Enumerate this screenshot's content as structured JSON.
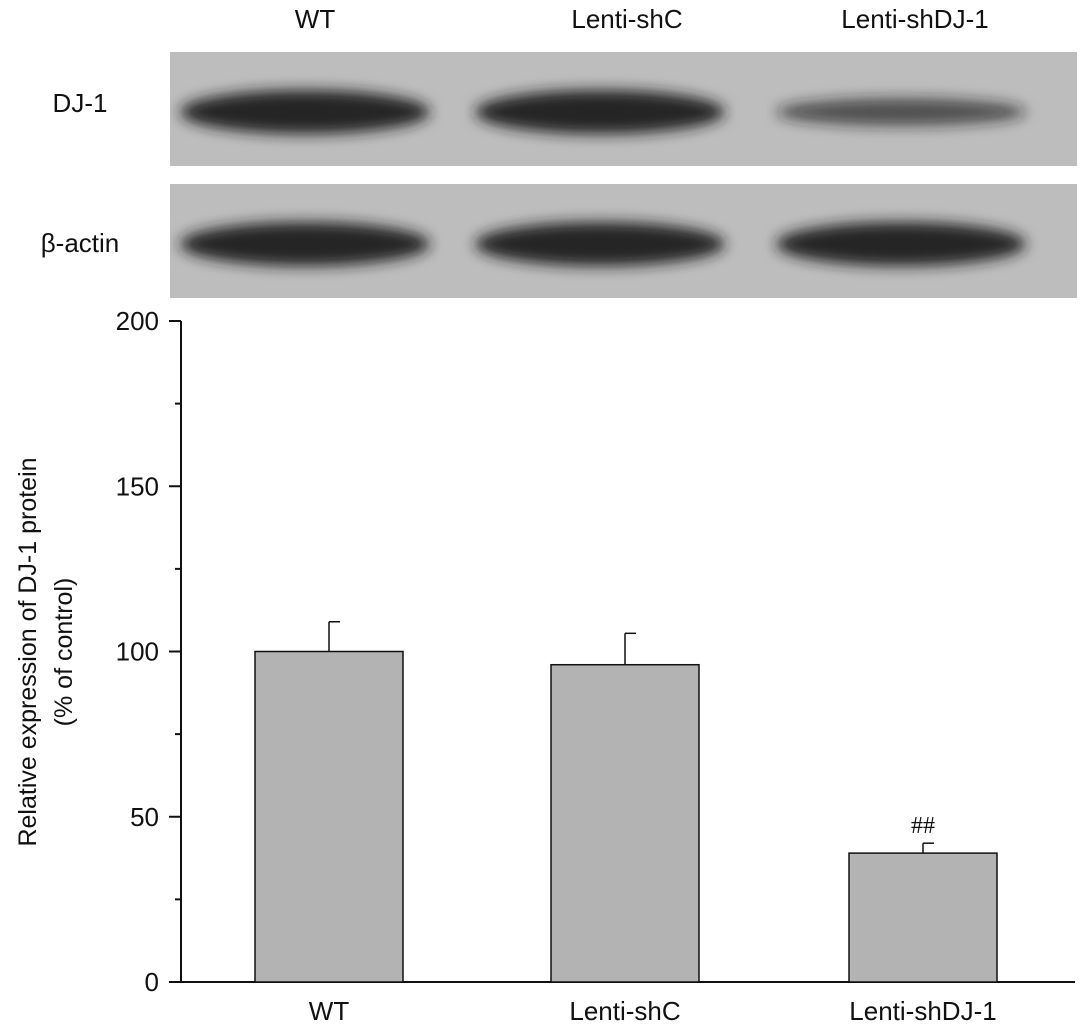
{
  "blot": {
    "lanes": [
      "WT",
      "Lenti-shC",
      "Lenti-shDJ-1"
    ],
    "rows": [
      {
        "label": "DJ-1",
        "band_intensity": [
          1.0,
          1.0,
          0.55
        ]
      },
      {
        "label": "β-actin",
        "band_intensity": [
          1.0,
          1.0,
          1.0
        ]
      }
    ],
    "colors": {
      "membrane": "#bdbdbd",
      "band": "#1a1a1a"
    }
  },
  "chart_data": {
    "type": "bar",
    "categories": [
      "WT",
      "Lenti-shC",
      "Lenti-shDJ-1"
    ],
    "values": [
      100,
      96,
      39
    ],
    "errors": [
      9,
      9.5,
      3
    ],
    "annotations": [
      "",
      "",
      "##"
    ],
    "ylabel_line1": "Relative expression of DJ-1 protein",
    "ylabel_line2": "(% of control)",
    "ylim": [
      0,
      200
    ],
    "yticks": [
      0,
      50,
      100,
      150,
      200
    ],
    "bar_color": "#b3b3b3",
    "grid": false
  }
}
